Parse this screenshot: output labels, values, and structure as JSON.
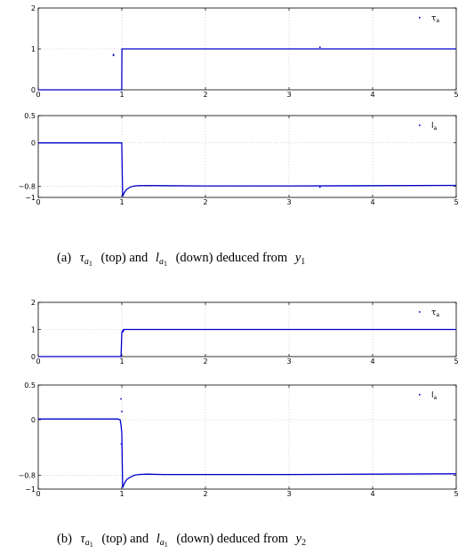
{
  "chart_data": [
    {
      "type": "line",
      "xlim": [
        0,
        5
      ],
      "ylim": [
        0,
        2
      ],
      "xticks": [
        0,
        1,
        2,
        3,
        4,
        5
      ],
      "yticks": [
        0,
        1,
        2
      ],
      "xtick_labels": [
        "0",
        "1",
        "2",
        "3",
        "4",
        "5"
      ],
      "ytick_labels": [
        "0",
        "1",
        "2"
      ],
      "grid": true,
      "legend": "top-right",
      "legend_label": "τ",
      "legend_sub": "a",
      "series": [
        {
          "color": "#0000cc",
          "x": [
            0,
            0.999,
            1.001,
            1.5,
            2,
            2.5,
            3,
            3.5,
            4,
            4.5,
            5
          ],
          "y": [
            0,
            0,
            1,
            1,
            1,
            1,
            1,
            1,
            1,
            1,
            1
          ],
          "outliers": [
            [
              0.9,
              0.86
            ],
            [
              0.9,
              0.84
            ],
            [
              3.37,
              1.04
            ]
          ]
        }
      ]
    },
    {
      "type": "line",
      "xlim": [
        0,
        5
      ],
      "ylim": [
        -1,
        0.5
      ],
      "xticks": [
        0,
        1,
        2,
        3,
        4,
        5
      ],
      "yticks": [
        -1,
        -0.8,
        0,
        0.5
      ],
      "xtick_labels": [
        "0",
        "1",
        "2",
        "3",
        "4",
        "5"
      ],
      "ytick_labels": [
        "−1",
        "−0.8",
        "0",
        "0.5"
      ],
      "grid": true,
      "legend": "top-right",
      "legend_label": "l",
      "legend_sub": "a",
      "series": [
        {
          "color": "#0000cc",
          "x": [
            0,
            0.999,
            1.01,
            1.03,
            1.06,
            1.1,
            1.15,
            1.2,
            1.3,
            1.5,
            2,
            3,
            4,
            5
          ],
          "y": [
            0,
            0,
            -0.98,
            -0.91,
            -0.85,
            -0.81,
            -0.79,
            -0.785,
            -0.782,
            -0.785,
            -0.79,
            -0.79,
            -0.785,
            -0.78
          ],
          "outliers": [
            [
              3.37,
              -0.81
            ]
          ]
        }
      ]
    },
    {
      "type": "line",
      "xlim": [
        0,
        5
      ],
      "ylim": [
        0,
        2
      ],
      "xticks": [
        0,
        1,
        2,
        3,
        4,
        5
      ],
      "yticks": [
        0,
        1,
        2
      ],
      "xtick_labels": [
        "0",
        "1",
        "2",
        "3",
        "4",
        "5"
      ],
      "ytick_labels": [
        "0",
        "1",
        "2"
      ],
      "grid": true,
      "legend": "top-right",
      "legend_label": "τ",
      "legend_sub": "a",
      "series": [
        {
          "color": "#0000cc",
          "x": [
            0,
            0.99,
            1.0,
            1.02,
            1.5,
            2,
            2.5,
            3,
            3.5,
            4,
            4.5,
            5
          ],
          "y": [
            0,
            0,
            0.9,
            1,
            1,
            1,
            1,
            1,
            1,
            1,
            1,
            1
          ],
          "outliers": [
            [
              1.01,
              0.92
            ],
            [
              1.02,
              0.95
            ]
          ]
        }
      ]
    },
    {
      "type": "line",
      "xlim": [
        0,
        5
      ],
      "ylim": [
        -1,
        0.5
      ],
      "xticks": [
        0,
        1,
        2,
        3,
        4,
        5
      ],
      "yticks": [
        -1,
        -0.8,
        0,
        0.5
      ],
      "xtick_labels": [
        "0",
        "1",
        "2",
        "3",
        "4",
        "5"
      ],
      "ytick_labels": [
        "−1",
        "−0.8",
        "0",
        "0.5"
      ],
      "grid": true,
      "legend": "top-right",
      "legend_label": "l",
      "legend_sub": "a",
      "series": [
        {
          "color": "#0000cc",
          "x": [
            0,
            0.95,
            0.98,
            0.99,
            1.0,
            1.01,
            1.03,
            1.06,
            1.1,
            1.15,
            1.2,
            1.3,
            1.5,
            2,
            3,
            4,
            5
          ],
          "y": [
            0.01,
            0.01,
            0.0,
            -0.08,
            -0.2,
            -0.98,
            -0.92,
            -0.86,
            -0.83,
            -0.8,
            -0.79,
            -0.785,
            -0.79,
            -0.79,
            -0.79,
            -0.785,
            -0.78
          ],
          "outliers": [
            [
              0.99,
              0.3
            ],
            [
              1.0,
              0.12
            ],
            [
              0.995,
              -0.35
            ]
          ]
        }
      ]
    }
  ],
  "captions": [
    {
      "label": "(a)",
      "tau": "τ",
      "tau_sub": "a",
      "tau_subsub": "1",
      "mid1": "(top) and",
      "l": "l",
      "l_sub": "a",
      "l_subsub": "1",
      "mid2": "(down) deduced from",
      "y": "y",
      "y_sub": "1"
    },
    {
      "label": "(b)",
      "tau": "τ",
      "tau_sub": "a",
      "tau_subsub": "1",
      "mid1": "(top) and",
      "l": "l",
      "l_sub": "a",
      "l_subsub": "1",
      "mid2": "(down) deduced from",
      "y": "y",
      "y_sub": "2"
    }
  ]
}
